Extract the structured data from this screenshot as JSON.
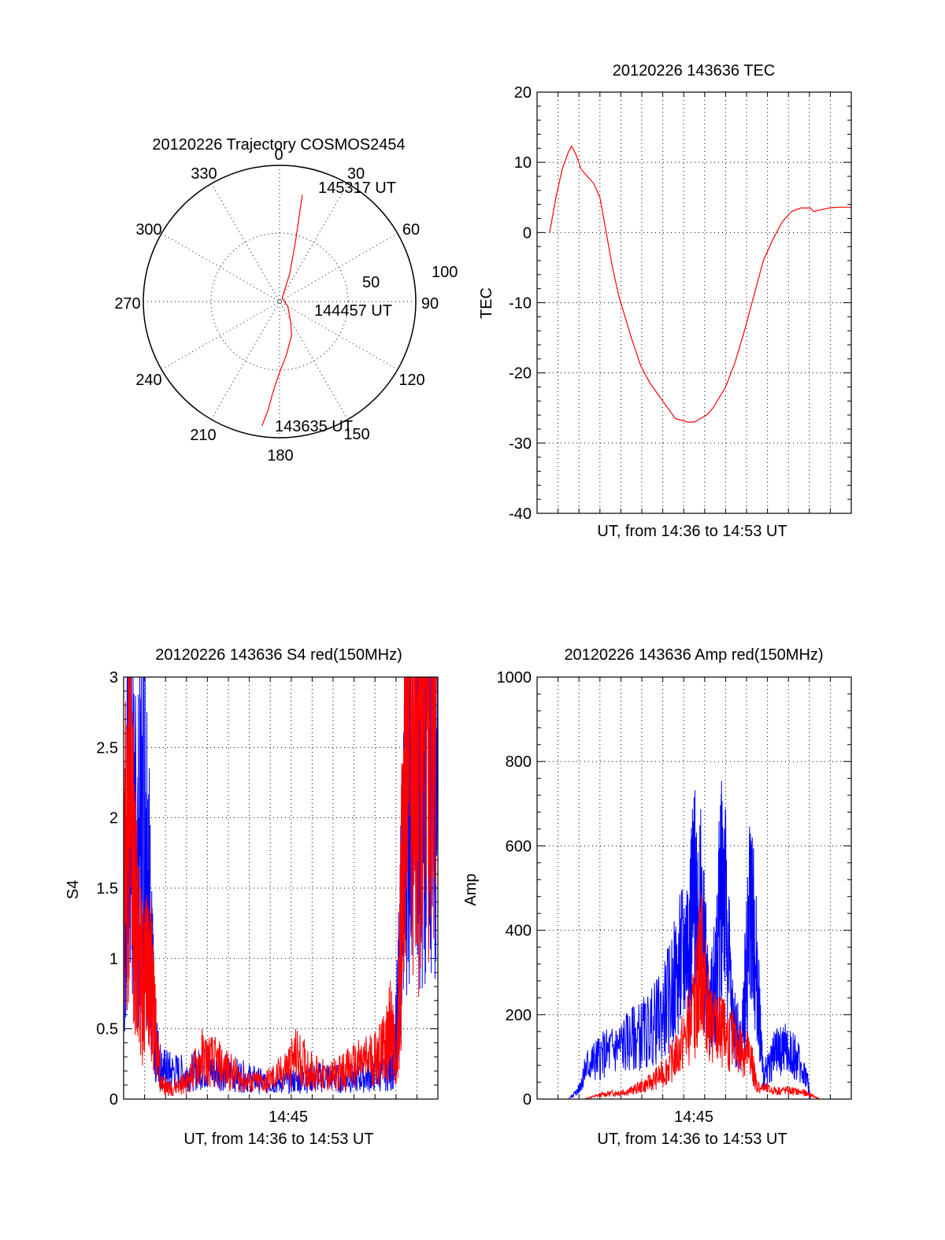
{
  "polar": {
    "title": "20120226 Trajectory COSMOS2454",
    "angle_labels": [
      "0",
      "30",
      "60",
      "90",
      "120",
      "150",
      "180",
      "210",
      "240",
      "270",
      "300",
      "330"
    ],
    "radius_labels": [
      "50",
      "100"
    ],
    "point_labels": [
      "145317 UT",
      "144457 UT",
      "143635 UT"
    ],
    "colors": {
      "trajectory": "#ff0000"
    }
  },
  "tec": {
    "title": "20120226 143636 TEC",
    "ylabel": "TEC",
    "xlabel": "UT, from 14:36 to 14:53 UT",
    "y_ticks": [
      "20",
      "10",
      "0",
      "-10",
      "-20",
      "-30",
      "-40"
    ],
    "colors": {
      "line": "#ff0000"
    }
  },
  "s4": {
    "title": "20120226 143636 S4 red(150MHz)",
    "ylabel": "S4",
    "xlabel": "UT, from 14:36 to 14:53 UT",
    "x_tick": "14:45",
    "y_ticks": [
      "3",
      "2.5",
      "2",
      "1.5",
      "1",
      "0.5",
      "0"
    ],
    "colors": {
      "red": "#ff0000",
      "blue": "#0000ff"
    }
  },
  "amp": {
    "title": "20120226 143636 Amp red(150MHz)",
    "ylabel": "Amp",
    "xlabel": "UT, from 14:36 to 14:53 UT",
    "x_tick": "14:45",
    "y_ticks": [
      "1000",
      "800",
      "600",
      "400",
      "200",
      "0"
    ],
    "colors": {
      "red": "#ff0000",
      "blue": "#0000ff"
    }
  },
  "chart_data": [
    {
      "type": "scatter",
      "title": "20120226 Trajectory COSMOS2454",
      "projection": "polar",
      "azimuth_range": [
        0,
        360
      ],
      "radius_range": [
        0,
        100
      ],
      "series": [
        {
          "color": "#ff0000",
          "azimuth": [
            188,
            186,
            184,
            180,
            173,
            160,
            150,
            120,
            40,
            20,
            15,
            12
          ],
          "radius": [
            92,
            80,
            66,
            52,
            40,
            26,
            16,
            7,
            3,
            22,
            45,
            80
          ]
        }
      ],
      "annotations": [
        "145317 UT",
        "144457 UT",
        "143635 UT"
      ]
    },
    {
      "type": "line",
      "title": "20120226 143636 TEC",
      "xlabel": "UT, from 14:36 to 14:53 UT",
      "ylabel": "TEC",
      "xlim": [
        0,
        1
      ],
      "ylim": [
        -40,
        20
      ],
      "grid": true,
      "series": [
        {
          "color": "#ff0000",
          "x": [
            0.04,
            0.06,
            0.08,
            0.1,
            0.11,
            0.125,
            0.14,
            0.16,
            0.18,
            0.2,
            0.22,
            0.24,
            0.26,
            0.28,
            0.3,
            0.33,
            0.36,
            0.4,
            0.44,
            0.48,
            0.5,
            0.52,
            0.54,
            0.56,
            0.58,
            0.6,
            0.63,
            0.66,
            0.69,
            0.72,
            0.75,
            0.78,
            0.81,
            0.84,
            0.87,
            0.88,
            0.9,
            0.93,
            0.96,
            1.0
          ],
          "y": [
            0,
            5,
            9,
            11.5,
            12.3,
            11,
            9,
            8,
            7,
            5,
            0,
            -5,
            -9,
            -12,
            -15,
            -19,
            -21.5,
            -24,
            -26.5,
            -27,
            -27,
            -26.5,
            -26,
            -25,
            -23.5,
            -22,
            -18.5,
            -14,
            -9,
            -4,
            -1,
            1.5,
            3,
            3.5,
            3.5,
            3,
            3.2,
            3.5,
            3.6,
            3.6
          ]
        }
      ]
    },
    {
      "type": "line",
      "title": "20120226 143636 S4 red(150MHz)",
      "xlabel": "UT, from 14:36 to 14:53 UT",
      "ylabel": "S4",
      "x_ticks": [
        "14:45"
      ],
      "ylim": [
        0,
        3
      ],
      "grid": true,
      "series": [
        {
          "color": "#0000ff",
          "x": [
            0,
            0.02,
            0.04,
            0.07,
            0.09,
            0.1,
            0.12,
            0.15,
            0.2,
            0.25,
            0.3,
            0.35,
            0.4,
            0.45,
            0.5,
            0.55,
            0.6,
            0.65,
            0.7,
            0.75,
            0.8,
            0.85,
            0.86,
            0.88,
            0.9,
            0.93,
            0.95,
            0.97,
            1.0
          ],
          "y": [
            1.0,
            2.5,
            1.6,
            2.2,
            0.9,
            0.4,
            0.22,
            0.2,
            0.18,
            0.22,
            0.2,
            0.18,
            0.15,
            0.12,
            0.12,
            0.13,
            0.15,
            0.16,
            0.14,
            0.15,
            0.17,
            0.2,
            0.25,
            1.0,
            2.5,
            3.0,
            2.6,
            2.8,
            3.0
          ]
        },
        {
          "color": "#ff0000",
          "x": [
            0,
            0.02,
            0.04,
            0.06,
            0.08,
            0.1,
            0.12,
            0.15,
            0.2,
            0.25,
            0.3,
            0.35,
            0.4,
            0.45,
            0.5,
            0.55,
            0.6,
            0.65,
            0.7,
            0.75,
            0.8,
            0.83,
            0.85,
            0.87,
            0.88,
            0.9,
            0.93,
            0.96,
            1.0
          ],
          "y": [
            1.5,
            2.2,
            1.2,
            0.8,
            1.0,
            0.5,
            0.1,
            0.08,
            0.12,
            0.3,
            0.25,
            0.18,
            0.12,
            0.12,
            0.18,
            0.3,
            0.2,
            0.15,
            0.2,
            0.25,
            0.3,
            0.35,
            0.5,
            0.25,
            0.9,
            3.0,
            2.5,
            2.8,
            3.0
          ]
        }
      ]
    },
    {
      "type": "line",
      "title": "20120226 143636 Amp red(150MHz)",
      "xlabel": "UT, from 14:36 to 14:53 UT",
      "ylabel": "Amp",
      "x_ticks": [
        "14:45"
      ],
      "ylim": [
        0,
        1000
      ],
      "grid": true,
      "series": [
        {
          "color": "#0000ff",
          "x": [
            0,
            0.1,
            0.13,
            0.16,
            0.2,
            0.25,
            0.3,
            0.35,
            0.4,
            0.45,
            0.48,
            0.5,
            0.52,
            0.55,
            0.57,
            0.59,
            0.62,
            0.65,
            0.68,
            0.7,
            0.72,
            0.75,
            0.78,
            0.82,
            0.86,
            0.87,
            0.9,
            1.0
          ],
          "y": [
            0,
            0,
            20,
            80,
            100,
            120,
            140,
            160,
            200,
            300,
            380,
            480,
            450,
            200,
            300,
            580,
            200,
            120,
            480,
            300,
            50,
            100,
            120,
            100,
            50,
            0,
            0,
            0
          ]
        },
        {
          "color": "#ff0000",
          "x": [
            0,
            0.15,
            0.2,
            0.25,
            0.3,
            0.35,
            0.4,
            0.45,
            0.5,
            0.52,
            0.55,
            0.58,
            0.6,
            0.65,
            0.68,
            0.7,
            0.75,
            0.8,
            0.85,
            0.87,
            0.9,
            1.0
          ],
          "y": [
            0,
            0,
            10,
            15,
            20,
            35,
            60,
            110,
            200,
            340,
            180,
            160,
            150,
            120,
            100,
            30,
            20,
            20,
            15,
            10,
            0,
            0
          ]
        }
      ]
    }
  ]
}
